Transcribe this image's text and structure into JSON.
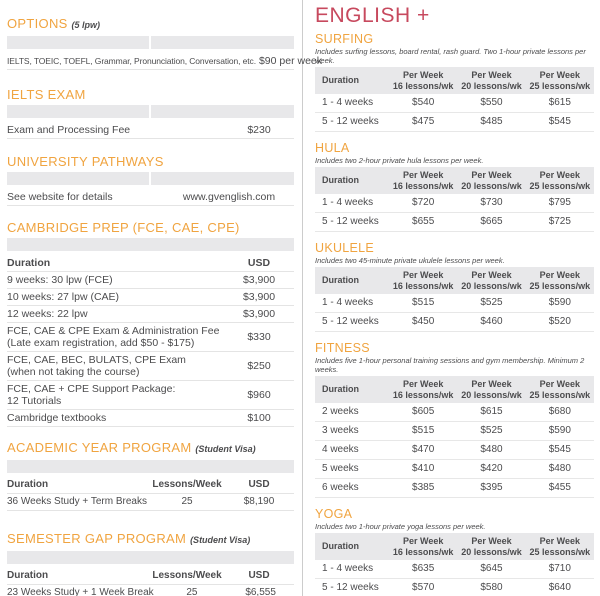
{
  "colors": {
    "accent_orange": "#F0A440",
    "accent_crimson": "#C7495E",
    "header_bar_gray": "#E8E8EA",
    "body_text": "#4C4C4E"
  },
  "left": {
    "options": {
      "title": "OPTIONS",
      "note": "(5 lpw)",
      "rows": [
        {
          "label": "IELTS, TOEIC, TOEFL, Grammar, Pronunciation, Conversation, etc.",
          "value": "$90 per week"
        }
      ]
    },
    "ielts": {
      "title": "IELTS EXAM",
      "rows": [
        {
          "label": "Exam and Processing Fee",
          "value": "$230"
        }
      ]
    },
    "pathways": {
      "title": "UNIVERSITY PATHWAYS",
      "rows": [
        {
          "label": "See website for details",
          "value": "www.gvenglish.com"
        }
      ]
    },
    "cambridge": {
      "title": "CAMBRIDGE PREP (FCE, CAE, CPE)",
      "header": {
        "label": "Duration",
        "value": "USD"
      },
      "rows": [
        {
          "label": "9 weeks: 30 lpw (FCE)",
          "value": "$3,900"
        },
        {
          "label": "10 weeks: 27 lpw (CAE)",
          "value": "$3,900"
        },
        {
          "label": "12 weeks: 22 lpw",
          "value": "$3,900"
        },
        {
          "label": "FCE, CAE & CPE Exam & Administration Fee",
          "label2": "(Late exam registration, add $50 - $175)",
          "value": "$330"
        },
        {
          "label": "FCE, CAE, BEC, BULATS, CPE Exam",
          "label2": "(when not taking the course)",
          "value": "$250"
        },
        {
          "label": "FCE, CAE + CPE Support Package:",
          "label2": "12 Tutorials",
          "value": "$960"
        },
        {
          "label": "Cambridge textbooks",
          "value": "$100"
        }
      ]
    },
    "academic": {
      "title": "ACADEMIC YEAR PROGRAM",
      "note": "(Student Visa)",
      "header": {
        "label": "Duration",
        "mid": "Lessons/Week",
        "value": "USD"
      },
      "rows": [
        {
          "label": "36 Weeks Study + Term Breaks",
          "mid": "25",
          "value": "$8,190"
        }
      ]
    },
    "semester": {
      "title": "SEMESTER GAP PROGRAM",
      "note": "(Student Visa)",
      "header": {
        "label": "Duration",
        "mid": "Lessons/Week",
        "value": "USD"
      },
      "rows": [
        {
          "label": "23 Weeks Study + 1 Week Break",
          "mid": "25",
          "value": "$6,555"
        }
      ]
    }
  },
  "right": {
    "title": "ENGLISH +",
    "cols": {
      "duration": "Duration",
      "per_week": "Per Week",
      "c16": "16 lessons/wk",
      "c20": "20 lessons/wk",
      "c25": "25 lessons/wk"
    },
    "surfing": {
      "title": "SURFING",
      "subtitle": "Includes surfing lessons, board rental, rash guard. Two 1-hour private lessons per week.",
      "rows": [
        [
          "1 - 4 weeks",
          "$540",
          "$550",
          "$615"
        ],
        [
          "5 - 12 weeks",
          "$475",
          "$485",
          "$545"
        ]
      ]
    },
    "hula": {
      "title": "HULA",
      "subtitle": "Includes two 2-hour private hula lessons per week.",
      "rows": [
        [
          "1 - 4 weeks",
          "$720",
          "$730",
          "$795"
        ],
        [
          "5 - 12 weeks",
          "$655",
          "$665",
          "$725"
        ]
      ]
    },
    "ukulele": {
      "title": "UKULELE",
      "subtitle": "Includes two 45-minute private ukulele lessons per week.",
      "rows": [
        [
          "1 - 4 weeks",
          "$515",
          "$525",
          "$590"
        ],
        [
          "5 - 12 weeks",
          "$450",
          "$460",
          "$520"
        ]
      ]
    },
    "fitness": {
      "title": "FITNESS",
      "subtitle": "Includes five 1-hour personal training sessions and gym membership. Minimum 2 weeks.",
      "rows": [
        [
          "2 weeks",
          "$605",
          "$615",
          "$680"
        ],
        [
          "3 weeks",
          "$515",
          "$525",
          "$590"
        ],
        [
          "4 weeks",
          "$470",
          "$480",
          "$545"
        ],
        [
          "5 weeks",
          "$410",
          "$420",
          "$480"
        ],
        [
          "6 weeks",
          "$385",
          "$395",
          "$455"
        ]
      ]
    },
    "yoga": {
      "title": "YOGA",
      "subtitle": "Includes two 1-hour private yoga lessons per week.",
      "rows": [
        [
          "1 - 4 weeks",
          "$635",
          "$645",
          "$710"
        ],
        [
          "5 - 12 weeks",
          "$570",
          "$580",
          "$640"
        ]
      ]
    }
  }
}
